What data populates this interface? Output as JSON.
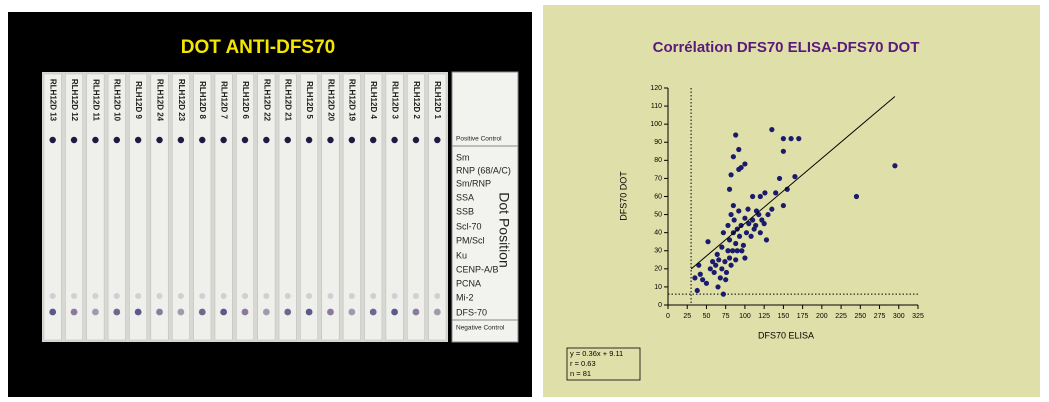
{
  "blot": {
    "title": "DOT  ANTI-DFS70",
    "strips": [
      "RLH12D 13",
      "RLH12D 12",
      "RLH12D 11",
      "RLH12D 10",
      "RLH12D 9",
      "RLH12D 24",
      "RLH12D 23",
      "RLH12D 8",
      "RLH12D 7",
      "RLH12D 6",
      "RLH12D 22",
      "RLH12D 21",
      "RLH12D 5",
      "RLH12D 20",
      "RLH12D 19",
      "RLH12D 4",
      "RLH12D 3",
      "RLH12D 2",
      "RLH12D 1"
    ],
    "rows": [
      "Positive Control",
      "Sm",
      "RNP (68/A/C)",
      "Sm/RNP",
      "SSA",
      "SSB",
      "Scl-70",
      "PM/Scl",
      "Ku",
      "CENP-A/B",
      "PCNA",
      "Mi-2",
      "DFS-70",
      "Negative Control"
    ],
    "axis_label": "Dot Position"
  },
  "chart_data": {
    "type": "scatter",
    "title": "Corrélation DFS70 ELISA-DFS70 DOT",
    "x_label": "DFS70 ELISA",
    "y_label": "DFS70 DOT",
    "color": "#1a1a6e",
    "x": [
      35,
      38,
      40,
      42,
      45,
      50,
      52,
      55,
      58,
      60,
      62,
      64,
      65,
      66,
      68,
      70,
      70,
      72,
      72,
      74,
      75,
      76,
      78,
      78,
      80,
      80,
      82,
      82,
      84,
      85,
      85,
      86,
      88,
      88,
      90,
      90,
      92,
      93,
      95,
      96,
      98,
      100,
      100,
      102,
      104,
      105,
      108,
      110,
      112,
      114,
      115,
      118,
      120,
      120,
      122,
      125,
      126,
      128,
      130,
      135,
      140,
      145,
      150,
      155,
      165,
      80,
      82,
      85,
      88,
      92,
      95,
      100,
      92,
      135,
      150,
      150,
      160,
      170,
      245,
      295,
      110
    ],
    "values": [
      15,
      8,
      22,
      17,
      14,
      12,
      35,
      20,
      24,
      18,
      22,
      28,
      10,
      25,
      15,
      20,
      32,
      6,
      40,
      24,
      14,
      18,
      30,
      44,
      26,
      36,
      22,
      50,
      30,
      40,
      55,
      47,
      34,
      25,
      42,
      30,
      52,
      38,
      44,
      30,
      33,
      26,
      48,
      40,
      53,
      45,
      38,
      47,
      42,
      44,
      52,
      50,
      40,
      60,
      47,
      45,
      62,
      36,
      50,
      53,
      62,
      70,
      55,
      64,
      71,
      64,
      72,
      82,
      94,
      86,
      76,
      78,
      75,
      97,
      92,
      85,
      92,
      92,
      60,
      77,
      60
    ],
    "xlim": [
      0,
      325
    ],
    "ylim": [
      0,
      120
    ],
    "xticks": [
      0,
      25,
      50,
      75,
      100,
      125,
      150,
      175,
      200,
      225,
      250,
      275,
      300,
      325
    ],
    "yticks": [
      0,
      10,
      20,
      30,
      40,
      50,
      60,
      70,
      80,
      90,
      100,
      110,
      120
    ],
    "ref_lines": {
      "x": 30,
      "y": 6
    },
    "fit": {
      "slope": 0.36,
      "intercept": 9.11,
      "x_range": [
        30,
        295
      ]
    },
    "stats": [
      "y = 0.36x + 9.11",
      "r = 0.63",
      "n = 81"
    ]
  }
}
